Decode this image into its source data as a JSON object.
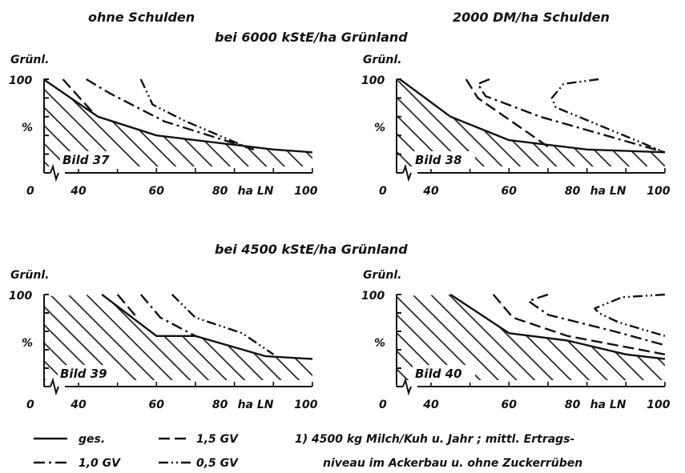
{
  "headers": {
    "left": "ohne Schulden",
    "right": "2000 DM/ha Schulden",
    "top_center": "bei 6000 kStE/ha Grünland",
    "mid_center": "bei 4500 kStE/ha Grünland"
  },
  "axis_text": {
    "ylabel": "Grünl.",
    "ytick_top": "100",
    "yunit": "%",
    "origin": "0",
    "xticks": [
      "40",
      "60",
      "80",
      "100"
    ],
    "xunit": "ha LN"
  },
  "legend": {
    "items": [
      {
        "label": "ges.",
        "style": "solid"
      },
      {
        "label": "1,5 GV",
        "style": "dash"
      },
      {
        "label": "1,0 GV",
        "style": "dashdot"
      },
      {
        "label": "0,5 GV",
        "style": "dashdotdot"
      }
    ],
    "note_line1": "1) 4500 kg Milch/Kuh u. Jahr ; mittl. Ertrags-",
    "note_line2": "niveau im Ackerbau u. ohne Zuckerrüben"
  },
  "colors": {
    "ink": "#111111",
    "background": "#ffffff"
  },
  "chart_data": [
    {
      "type": "line",
      "label": "Bild 37",
      "xlim": [
        30,
        100
      ],
      "ylim": [
        0,
        100
      ],
      "series": [
        {
          "name": "ges.",
          "style": "solid",
          "x": [
            31,
            45,
            60,
            90,
            100
          ],
          "y": [
            100,
            60,
            40,
            25,
            22
          ],
          "hatched": true
        },
        {
          "name": "1,5 GV",
          "style": "dash",
          "x": [
            36,
            44
          ],
          "y": [
            100,
            63
          ]
        },
        {
          "name": "1,0 GV",
          "style": "dashdot",
          "x": [
            42,
            48,
            62,
            85
          ],
          "y": [
            100,
            85,
            55,
            25
          ]
        },
        {
          "name": "0,5 GV",
          "style": "dashdotdot",
          "x": [
            56,
            59,
            67,
            84
          ],
          "y": [
            100,
            73,
            56,
            26
          ]
        }
      ]
    },
    {
      "type": "line",
      "label": "Bild 38",
      "xlim": [
        30,
        100
      ],
      "ylim": [
        0,
        100
      ],
      "series": [
        {
          "name": "ges.",
          "style": "solid",
          "x": [
            32,
            45,
            60,
            80,
            100
          ],
          "y": [
            100,
            60,
            35,
            25,
            22
          ]
        },
        {
          "name": "1,5 GV",
          "style": "dash",
          "x": [
            49,
            52,
            70
          ],
          "y": [
            100,
            80,
            28
          ]
        },
        {
          "name": "1,0 GV",
          "style": "dashdot",
          "x": [
            55,
            52,
            54,
            68,
            100
          ],
          "y": [
            100,
            95,
            82,
            60,
            22
          ]
        },
        {
          "name": "0,5 GV",
          "style": "dashdotdot",
          "x": [
            83,
            74,
            71,
            72,
            100
          ],
          "y": [
            100,
            95,
            80,
            70,
            22
          ]
        }
      ]
    },
    {
      "type": "line",
      "label": "Bild 39",
      "xlim": [
        30,
        100
      ],
      "ylim": [
        0,
        100
      ],
      "series": [
        {
          "name": "ges.",
          "style": "solid",
          "x": [
            46,
            60,
            70,
            88,
            100
          ],
          "y": [
            100,
            55,
            55,
            33,
            30
          ]
        },
        {
          "name": "1,5 GV",
          "style": "dash",
          "x": [
            50,
            55
          ],
          "y": [
            100,
            75
          ]
        },
        {
          "name": "1,0 GV",
          "style": "dashdot",
          "x": [
            56,
            61,
            70
          ],
          "y": [
            100,
            75,
            55
          ]
        },
        {
          "name": "0,5 GV",
          "style": "dashdotdot",
          "x": [
            64,
            70,
            82,
            90
          ],
          "y": [
            100,
            75,
            58,
            35
          ]
        }
      ]
    },
    {
      "type": "line",
      "label": "Bild 40",
      "xlim": [
        30,
        100
      ],
      "ylim": [
        0,
        100
      ],
      "series": [
        {
          "name": "ges.",
          "style": "solid",
          "x": [
            45,
            60,
            75,
            90,
            100
          ],
          "y": [
            100,
            58,
            50,
            35,
            30
          ]
        },
        {
          "name": "1,5 GV",
          "style": "dash",
          "x": [
            56,
            61,
            75,
            100
          ],
          "y": [
            100,
            75,
            55,
            35
          ]
        },
        {
          "name": "1,0 GV",
          "style": "dashdot",
          "x": [
            70,
            65,
            70,
            87,
            100
          ],
          "y": [
            100,
            93,
            78,
            60,
            45
          ]
        },
        {
          "name": "0,5 GV",
          "style": "dashdotdot",
          "x": [
            100,
            89,
            82,
            83,
            88,
            100
          ],
          "y": [
            100,
            97,
            85,
            80,
            70,
            55
          ]
        }
      ]
    }
  ]
}
